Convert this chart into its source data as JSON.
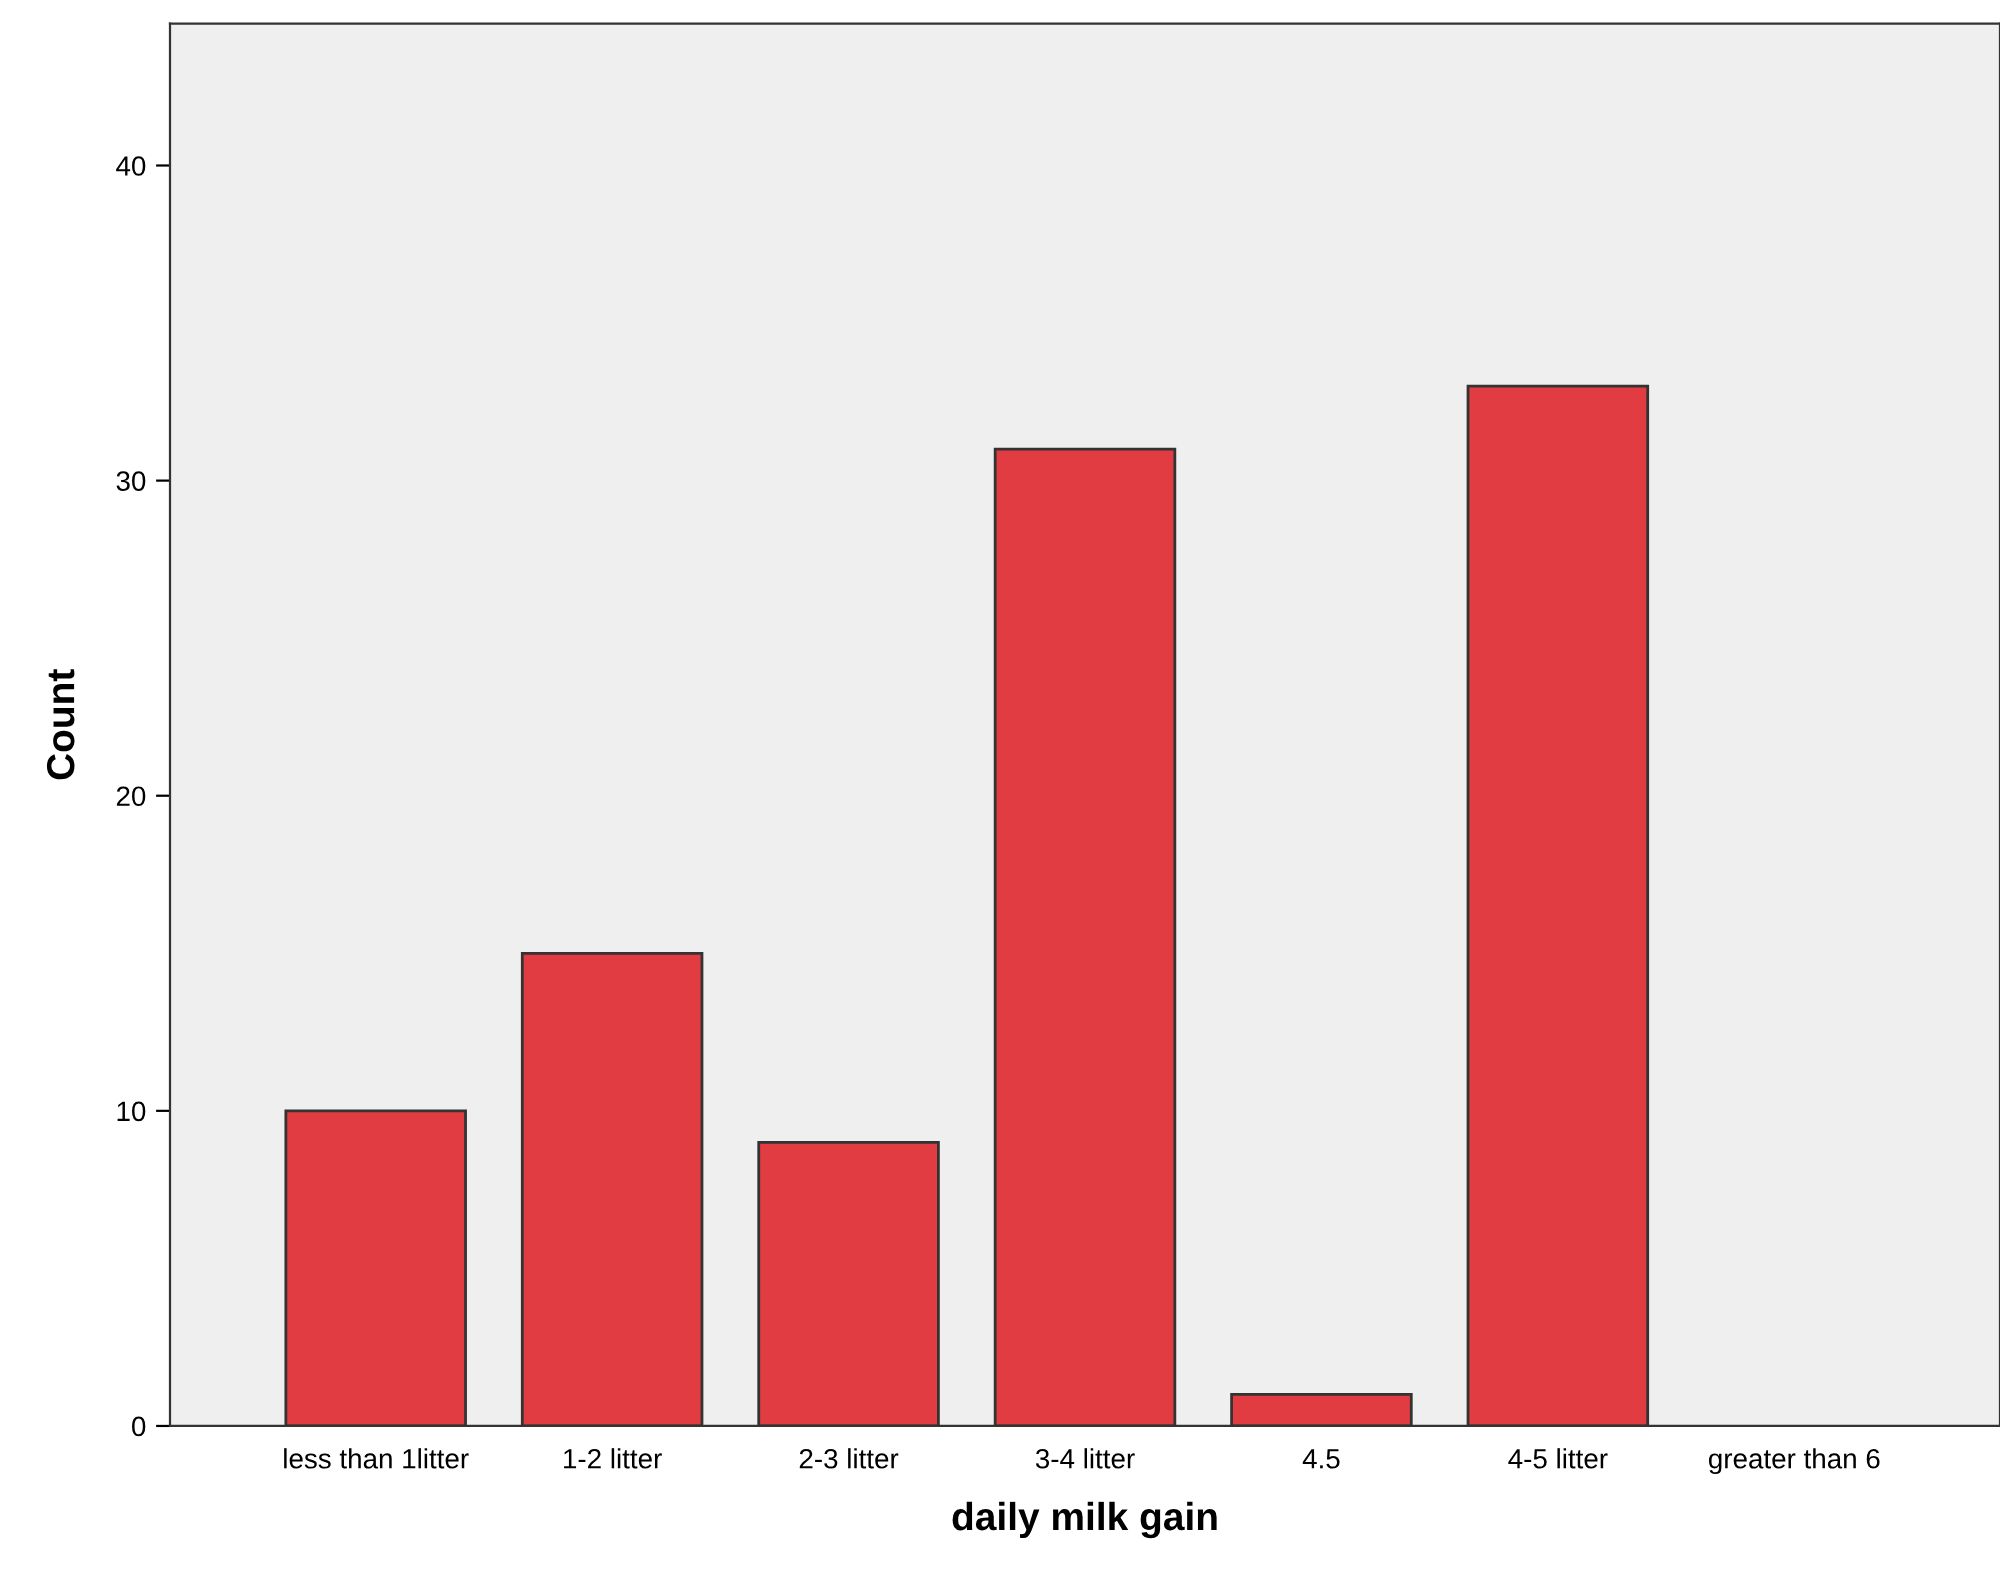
{
  "chart_data": {
    "type": "bar",
    "xlabel": "daily milk gain",
    "ylabel": "Count",
    "categories": [
      "less than 1litter",
      "1-2 litter",
      "2-3 litter",
      "3-4 litter",
      "4.5",
      "4-5 litter",
      "greater than 6"
    ],
    "values": [
      10,
      15,
      9,
      31,
      1,
      33,
      0
    ],
    "color": "#e03c41",
    "ylim": [
      0,
      44.5
    ],
    "yticks": [
      0,
      10,
      20,
      30,
      40
    ],
    "grid": false
  }
}
